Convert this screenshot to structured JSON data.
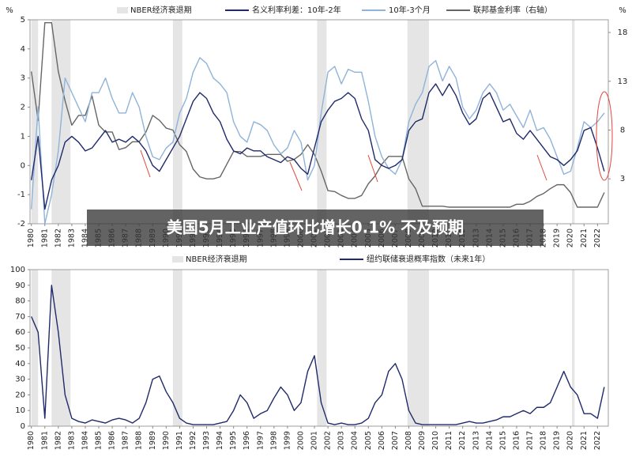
{
  "headline": "美国5月工业产值环比增长0.1% 不及预期",
  "chart_data": [
    {
      "type": "line",
      "y_unit_label": "%",
      "y2_unit_label": "%",
      "x": [
        1980,
        1980.5,
        1981,
        1981.5,
        1982,
        1982.5,
        1983,
        1983.5,
        1984,
        1984.5,
        1985,
        1985.5,
        1986,
        1986.5,
        1987,
        1987.5,
        1988,
        1988.5,
        1989,
        1989.5,
        1990,
        1990.5,
        1991,
        1991.5,
        1992,
        1992.5,
        1993,
        1993.5,
        1994,
        1994.5,
        1995,
        1995.5,
        1996,
        1996.5,
        1997,
        1997.5,
        1998,
        1998.5,
        1999,
        1999.5,
        2000,
        2000.5,
        2001,
        2001.5,
        2002,
        2002.5,
        2003,
        2003.5,
        2004,
        2004.5,
        2005,
        2005.5,
        2006,
        2006.5,
        2007,
        2007.5,
        2008,
        2008.5,
        2009,
        2009.5,
        2010,
        2010.5,
        2011,
        2011.5,
        2012,
        2012.5,
        2013,
        2013.5,
        2014,
        2014.5,
        2015,
        2015.5,
        2016,
        2016.5,
        2017,
        2017.5,
        2018,
        2018.5,
        2019,
        2019.5,
        2020,
        2020.5,
        2021,
        2021.5,
        2022,
        2022.5
      ],
      "xlim": [
        1979.9,
        2022.8
      ],
      "xticks": [
        1980,
        1981,
        1982,
        1983,
        1984,
        1985,
        1986,
        1987,
        1988,
        1989,
        1990,
        1991,
        1992,
        1993,
        1994,
        1995,
        1996,
        1997,
        1998,
        1999,
        2000,
        2001,
        2002,
        2003,
        2004,
        2005,
        2006,
        2007,
        2008,
        2009,
        2010,
        2011,
        2012,
        2013,
        2014,
        2015,
        2016,
        2017,
        2018,
        2019,
        2020,
        2021,
        2022
      ],
      "ylim": [
        -2,
        5
      ],
      "yticks": [
        -2,
        -1,
        0,
        1,
        2,
        3,
        4,
        5
      ],
      "y2lim": [
        -1.6,
        19.3
      ],
      "y2ticks": [
        3,
        8,
        13,
        18
      ],
      "recessions": {
        "name": "NBER经济衰退期",
        "color": "#e5e5e5",
        "periods": [
          [
            1980,
            1980.5
          ],
          [
            1981.5,
            1982.9
          ],
          [
            1990.5,
            1991.2
          ],
          [
            2001.2,
            2001.9
          ],
          [
            2007.9,
            2009.5
          ],
          [
            2020.1,
            2020.3
          ]
        ]
      },
      "series": [
        {
          "name": "名义利率利差：10年-2年",
          "color": "#1f2a6b",
          "values": [
            -0.5,
            1.0,
            -1.5,
            -0.5,
            0.0,
            0.8,
            1.0,
            0.8,
            0.5,
            0.6,
            0.9,
            1.2,
            0.8,
            0.9,
            0.8,
            1.0,
            0.8,
            0.5,
            0.0,
            -0.2,
            0.2,
            0.6,
            1.0,
            1.6,
            2.2,
            2.5,
            2.3,
            1.8,
            1.5,
            0.9,
            0.5,
            0.4,
            0.6,
            0.5,
            0.5,
            0.3,
            0.2,
            0.1,
            0.3,
            0.2,
            -0.1,
            -0.3,
            0.6,
            1.5,
            1.9,
            2.2,
            2.3,
            2.5,
            2.3,
            1.6,
            1.2,
            0.2,
            0.0,
            -0.1,
            0.0,
            0.2,
            1.2,
            1.5,
            1.6,
            2.5,
            2.8,
            2.4,
            2.8,
            2.4,
            1.8,
            1.4,
            1.6,
            2.3,
            2.5,
            2.0,
            1.5,
            1.6,
            1.1,
            0.9,
            1.2,
            0.9,
            0.6,
            0.3,
            0.2,
            0.0,
            0.2,
            0.5,
            1.2,
            1.3,
            0.6,
            -0.2
          ]
        },
        {
          "name": "10年-3个月",
          "color": "#8fb3d9",
          "values": [
            -1.5,
            2.0,
            -2.0,
            -1.0,
            0.5,
            3.0,
            2.5,
            2.0,
            1.5,
            2.5,
            2.5,
            3.0,
            2.3,
            1.8,
            1.8,
            2.5,
            2.0,
            1.0,
            0.3,
            0.2,
            0.6,
            0.8,
            1.8,
            2.3,
            3.2,
            3.7,
            3.5,
            3.0,
            2.8,
            2.5,
            1.5,
            1.0,
            0.8,
            1.5,
            1.4,
            1.2,
            0.7,
            0.4,
            0.6,
            1.2,
            0.8,
            -0.5,
            0.0,
            1.8,
            3.2,
            3.4,
            2.8,
            3.3,
            3.2,
            3.2,
            2.2,
            1.0,
            0.3,
            -0.1,
            -0.3,
            0.2,
            1.5,
            2.1,
            2.5,
            3.4,
            3.6,
            2.9,
            3.4,
            3.0,
            2.0,
            1.6,
            1.9,
            2.5,
            2.8,
            2.5,
            1.9,
            2.1,
            1.7,
            1.3,
            1.9,
            1.2,
            1.3,
            0.9,
            0.3,
            -0.3,
            -0.2,
            0.6,
            1.5,
            1.3,
            1.5,
            1.8
          ]
        },
        {
          "name": "联邦基金利率（右轴）",
          "color": "#666666",
          "axis": "y2",
          "values": [
            14,
            9,
            19,
            19,
            14,
            11,
            8.5,
            9.5,
            9.5,
            11.5,
            8.5,
            7.8,
            7.8,
            6.0,
            6.2,
            6.8,
            6.8,
            7.8,
            9.5,
            9.0,
            8.2,
            8.0,
            6.5,
            5.8,
            4.0,
            3.2,
            3.0,
            3.0,
            3.2,
            4.5,
            5.8,
            5.8,
            5.3,
            5.3,
            5.3,
            5.5,
            5.5,
            5.5,
            4.8,
            5.0,
            5.5,
            6.5,
            5.5,
            3.8,
            1.8,
            1.7,
            1.3,
            1.0,
            1.0,
            1.3,
            2.5,
            3.3,
            4.5,
            5.3,
            5.3,
            5.3,
            3.0,
            2.0,
            0.2,
            0.2,
            0.2,
            0.2,
            0.1,
            0.1,
            0.1,
            0.1,
            0.1,
            0.1,
            0.1,
            0.1,
            0.1,
            0.1,
            0.4,
            0.4,
            0.7,
            1.2,
            1.5,
            2.0,
            2.4,
            2.4,
            1.6,
            0.1,
            0.1,
            0.1,
            0.1,
            1.6
          ]
        }
      ]
    },
    {
      "type": "line",
      "x": [
        1980,
        1980.5,
        1981,
        1981.5,
        1982,
        1982.5,
        1983,
        1983.5,
        1984,
        1984.5,
        1985,
        1985.5,
        1986,
        1986.5,
        1987,
        1987.5,
        1988,
        1988.5,
        1989,
        1989.5,
        1990,
        1990.5,
        1991,
        1991.5,
        1992,
        1992.5,
        1993,
        1993.5,
        1994,
        1994.5,
        1995,
        1995.5,
        1996,
        1996.5,
        1997,
        1997.5,
        1998,
        1998.5,
        1999,
        1999.5,
        2000,
        2000.5,
        2001,
        2001.5,
        2002,
        2002.5,
        2003,
        2003.5,
        2004,
        2004.5,
        2005,
        2005.5,
        2006,
        2006.5,
        2007,
        2007.5,
        2008,
        2008.5,
        2009,
        2009.5,
        2010,
        2010.5,
        2011,
        2011.5,
        2012,
        2012.5,
        2013,
        2013.5,
        2014,
        2014.5,
        2015,
        2015.5,
        2016,
        2016.5,
        2017,
        2017.5,
        2018,
        2018.5,
        2019,
        2019.5,
        2020,
        2020.5,
        2021,
        2021.5,
        2022,
        2022.5
      ],
      "xlim": [
        1979.9,
        2022.8
      ],
      "xticks": [
        1980,
        1981,
        1982,
        1983,
        1984,
        1985,
        1986,
        1987,
        1988,
        1989,
        1990,
        1991,
        1992,
        1993,
        1994,
        1995,
        1996,
        1997,
        1998,
        1999,
        2000,
        2001,
        2002,
        2003,
        2004,
        2005,
        2006,
        2007,
        2008,
        2009,
        2010,
        2011,
        2012,
        2013,
        2014,
        2015,
        2016,
        2017,
        2018,
        2019,
        2020,
        2021,
        2022
      ],
      "ylim": [
        0,
        100
      ],
      "yticks": [
        0,
        10,
        20,
        30,
        40,
        50,
        60,
        70,
        80,
        90,
        100
      ],
      "recessions": {
        "name": "NBER经济衰退期",
        "color": "#e5e5e5",
        "periods": [
          [
            1980,
            1980.5
          ],
          [
            1981.5,
            1982.9
          ],
          [
            1990.5,
            1991.2
          ],
          [
            2001.2,
            2001.9
          ],
          [
            2007.9,
            2009.5
          ],
          [
            2020.1,
            2020.3
          ]
        ]
      },
      "series": [
        {
          "name": "纽约联储衰退概率指数（未来1年）",
          "color": "#1f2a6b",
          "values": [
            70,
            60,
            5,
            90,
            60,
            20,
            5,
            3,
            2,
            4,
            3,
            2,
            4,
            5,
            4,
            2,
            5,
            15,
            30,
            32,
            22,
            15,
            5,
            2,
            1,
            1,
            1,
            1,
            2,
            3,
            10,
            20,
            15,
            5,
            8,
            10,
            18,
            25,
            20,
            10,
            15,
            35,
            45,
            15,
            2,
            1,
            2,
            1,
            1,
            2,
            5,
            15,
            20,
            35,
            40,
            30,
            10,
            2,
            1,
            1,
            1,
            1,
            1,
            1,
            2,
            3,
            2,
            2,
            3,
            4,
            6,
            6,
            8,
            10,
            8,
            12,
            12,
            15,
            25,
            35,
            25,
            20,
            8,
            8,
            5,
            25
          ]
        }
      ]
    }
  ]
}
